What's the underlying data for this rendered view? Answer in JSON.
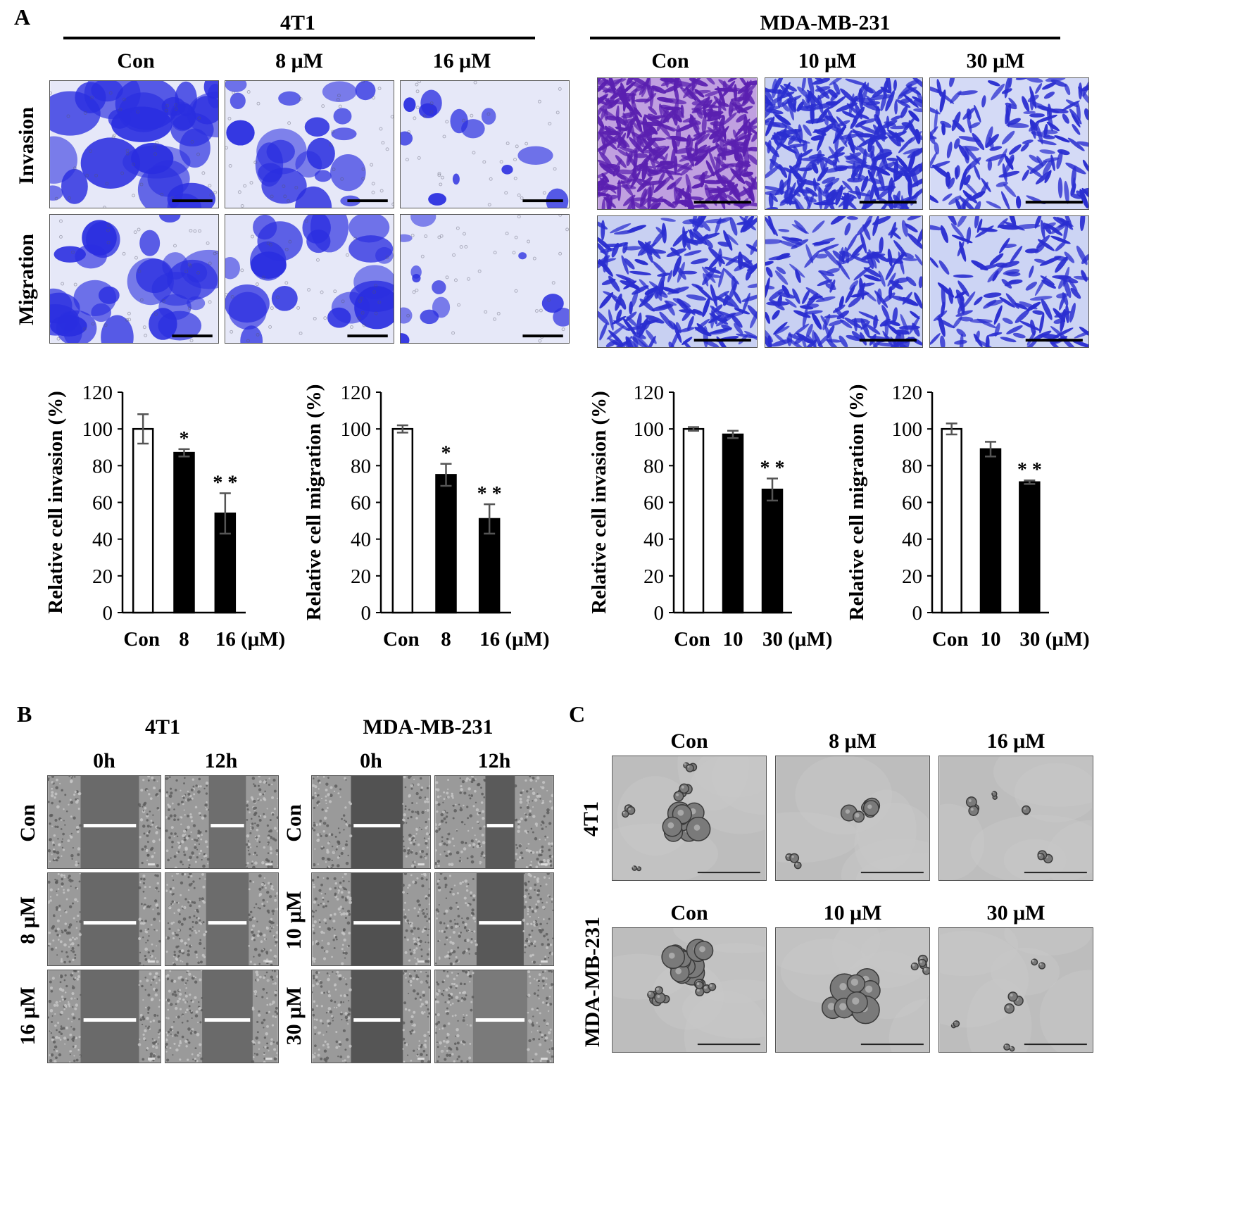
{
  "panels": {
    "a": "A",
    "b": "B",
    "c": "C"
  },
  "panel_a": {
    "groups": [
      {
        "cell_line": "4T1",
        "doses": [
          "Con",
          "8 μM",
          "16 μM"
        ]
      },
      {
        "cell_line": "MDA-MB-231",
        "doses": [
          "Con",
          "10 μM",
          "30 μM"
        ]
      }
    ],
    "row_labels": [
      "Invasion",
      "Migration"
    ],
    "colors": {
      "stain_4t1": "#2a2ee0",
      "stain_mda": "#2a2ed0",
      "stain_mda_con": "#5a20b0",
      "bg": "#d8dcf6"
    }
  },
  "chart_data": [
    {
      "type": "bar",
      "title": "",
      "ylabel": "Relative cell invasion (%)",
      "xlabel": "",
      "categories": [
        "Con",
        "8",
        "16 (μM)"
      ],
      "values": [
        100,
        87,
        54
      ],
      "errors": [
        8,
        2,
        11
      ],
      "significance": [
        "",
        "*",
        "**"
      ],
      "ylim": [
        0,
        120
      ],
      "yticks": [
        0,
        20,
        40,
        60,
        80,
        100,
        120
      ]
    },
    {
      "type": "bar",
      "title": "",
      "ylabel": "Relative cell migration (%)",
      "xlabel": "",
      "categories": [
        "Con",
        "8",
        "16 (μM)"
      ],
      "values": [
        100,
        75,
        51
      ],
      "errors": [
        2,
        6,
        8
      ],
      "significance": [
        "",
        "*",
        "**"
      ],
      "ylim": [
        0,
        120
      ],
      "yticks": [
        0,
        20,
        40,
        60,
        80,
        100,
        120
      ]
    },
    {
      "type": "bar",
      "title": "",
      "ylabel": "Relative cell invasion (%)",
      "xlabel": "",
      "categories": [
        "Con",
        "10",
        "30 (μM)"
      ],
      "values": [
        100,
        97,
        67
      ],
      "errors": [
        1,
        2,
        6
      ],
      "significance": [
        "",
        "",
        "**"
      ],
      "ylim": [
        0,
        120
      ],
      "yticks": [
        0,
        20,
        40,
        60,
        80,
        100,
        120
      ]
    },
    {
      "type": "bar",
      "title": "",
      "ylabel": "Relative cell migration (%)",
      "xlabel": "",
      "categories": [
        "Con",
        "10",
        "30 (μM)"
      ],
      "values": [
        100,
        89,
        71
      ],
      "errors": [
        3,
        4,
        1
      ],
      "significance": [
        "",
        "",
        "**"
      ],
      "ylim": [
        0,
        120
      ],
      "yticks": [
        0,
        20,
        40,
        60,
        80,
        100,
        120
      ]
    }
  ],
  "panel_b": {
    "groups": [
      {
        "cell_line": "4T1",
        "times": [
          "0h",
          "12h"
        ],
        "row_labels": [
          "Con",
          "8 μM",
          "16 μM"
        ]
      },
      {
        "cell_line": "MDA-MB-231",
        "times": [
          "0h",
          "12h"
        ],
        "row_labels": [
          "Con",
          "10 μM",
          "30 μM"
        ]
      }
    ],
    "wound_fraction": {
      "t4_0h": [
        0.52,
        0.52,
        0.52
      ],
      "t4_12h": [
        0.33,
        0.38,
        0.45
      ],
      "mda_0h": [
        0.44,
        0.44,
        0.44
      ],
      "mda_12h": [
        0.25,
        0.4,
        0.46
      ]
    }
  },
  "panel_c": {
    "rows": [
      {
        "cell_line": "4T1",
        "doses": [
          "Con",
          "8 μM",
          "16 μM"
        ]
      },
      {
        "cell_line": "MDA-MB-231",
        "doses": [
          "Con",
          "10 μM",
          "30 μM"
        ]
      }
    ]
  }
}
